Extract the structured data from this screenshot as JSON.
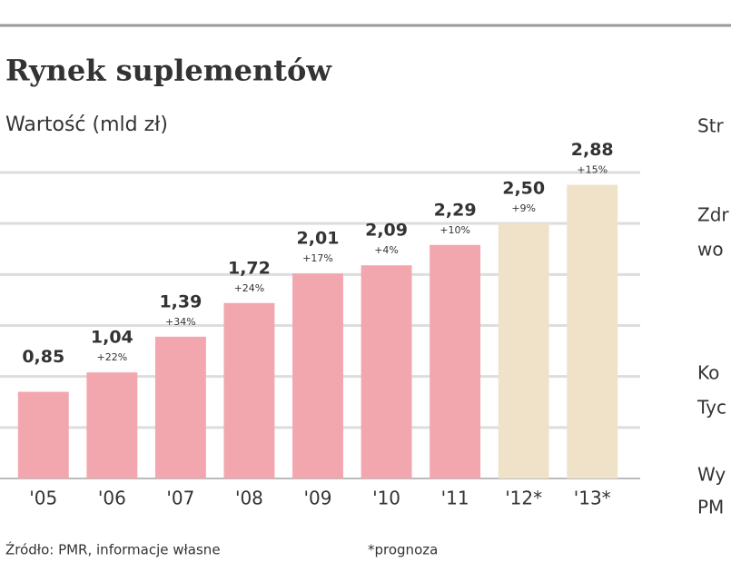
{
  "chart_data": {
    "type": "bar",
    "title": "Rynek suplementów",
    "subtitle": "Wartość (mld zł)",
    "categories": [
      "'05",
      "'06",
      "'07",
      "'08",
      "'09",
      "'10",
      "'11",
      "'12*",
      "'13*"
    ],
    "values": [
      0.85,
      1.04,
      1.39,
      1.72,
      2.01,
      2.09,
      2.29,
      2.5,
      2.88
    ],
    "value_labels": [
      "0,85",
      "1,04",
      "1,39",
      "1,72",
      "2,01",
      "2,09",
      "2,29",
      "2,50",
      "2,88"
    ],
    "growth_labels": [
      null,
      "+22%",
      "+34%",
      "+24%",
      "+17%",
      "+4%",
      "+10%",
      "+9%",
      "+15%"
    ],
    "colors": [
      "#f2a7ae",
      "#f2a7ae",
      "#f2a7ae",
      "#f2a7ae",
      "#f2a7ae",
      "#f2a7ae",
      "#f2a7ae",
      "#f0e2c8",
      "#f0e2c8"
    ],
    "ylim": [
      0,
      3
    ],
    "gridlines": [
      0.5,
      1,
      1.5,
      2,
      2.5,
      3
    ],
    "grid": true,
    "source": "Źródło: PMR, informacje własne",
    "note": "*prognoza"
  },
  "side_panel": [
    "Str",
    "Zdr",
    "wo",
    "Ko",
    "Tyc",
    "Wy",
    "PM"
  ]
}
